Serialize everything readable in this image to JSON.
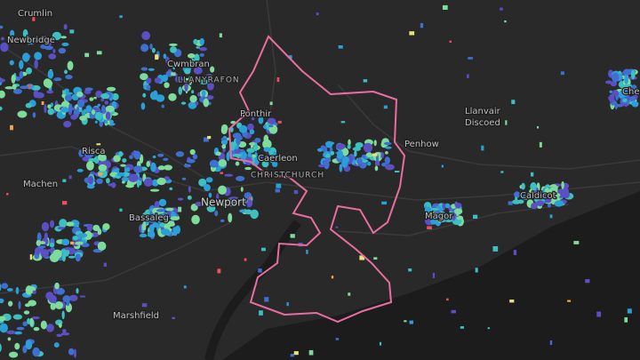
{
  "places": [
    "Crumlin",
    "Newbridge",
    "Cwmbran",
    "LLANYRAFON",
    "Ponthir",
    "Caerleon",
    "Risca",
    "Machen",
    "CHRISTCHURCH",
    "Newport",
    "Bassaleg",
    "Llanvair",
    "Discoed",
    "Penhow",
    "Caldicot",
    "Magor",
    "Marshfield",
    "Che"
  ]
}
